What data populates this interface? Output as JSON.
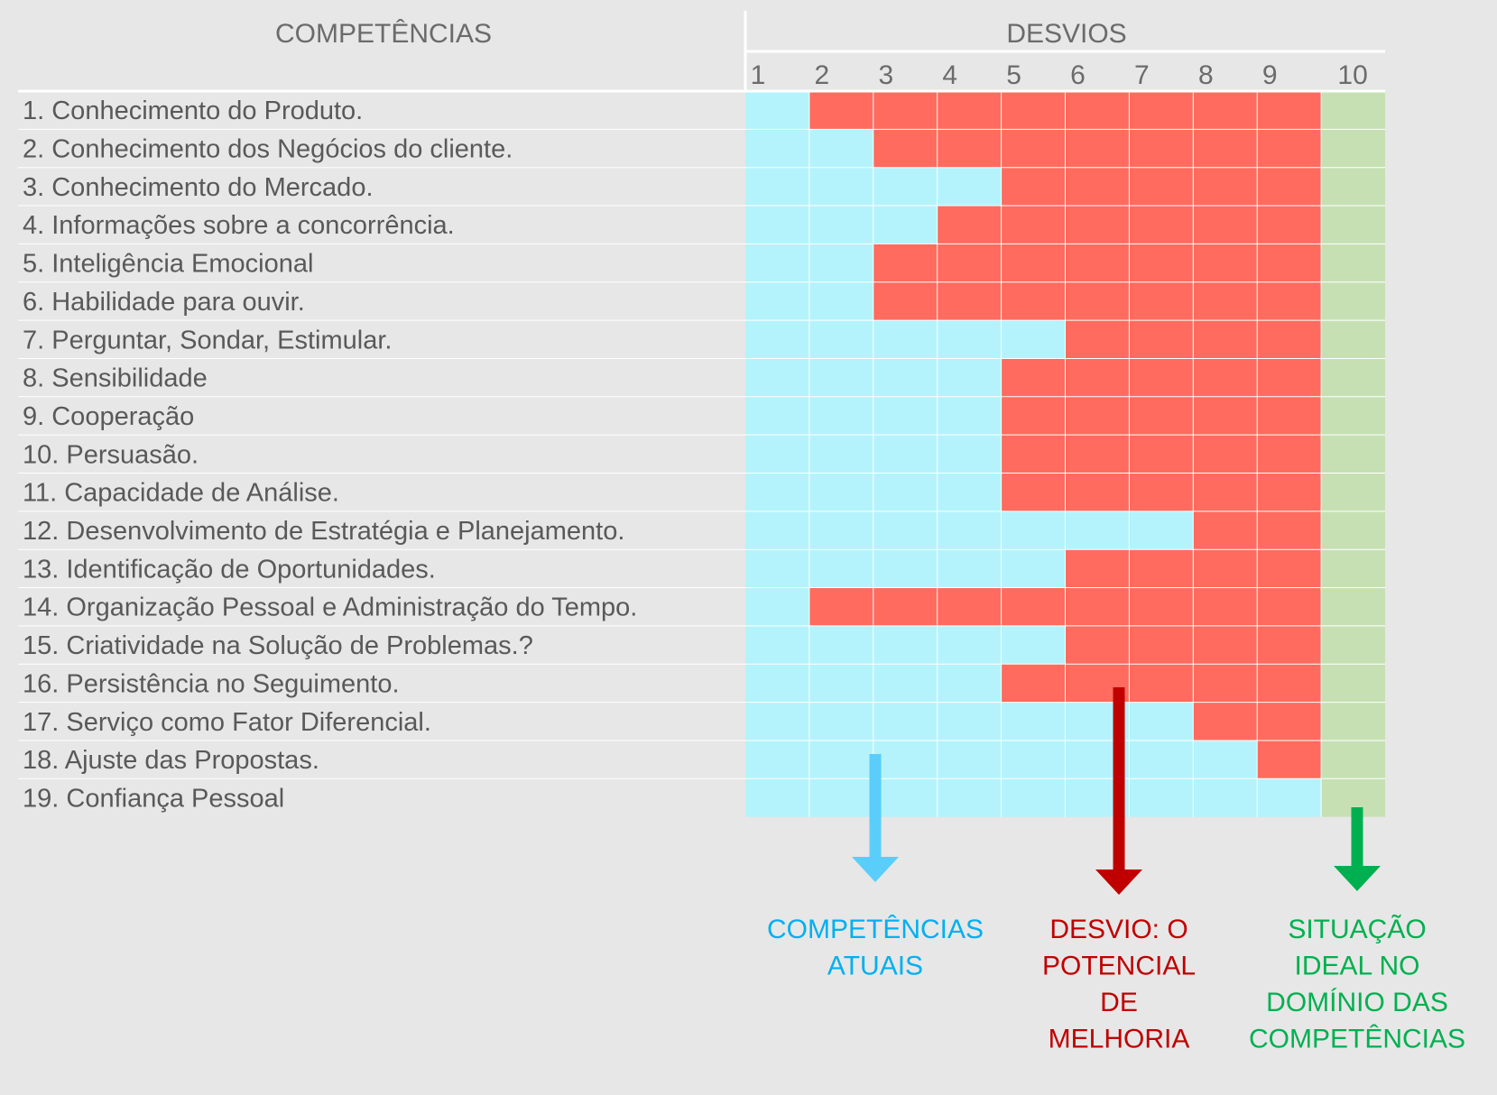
{
  "chart_data": {
    "type": "heatmap",
    "title": "",
    "row_header": "COMPETÊNCIAS",
    "column_header": "DESVIOS",
    "columns": [
      "1",
      "2",
      "3",
      "4",
      "5",
      "6",
      "7",
      "8",
      "9",
      "10"
    ],
    "rows": [
      {
        "label": "1. Conhecimento do Produto.",
        "current": 1
      },
      {
        "label": "2. Conhecimento dos Negócios do cliente.",
        "current": 2
      },
      {
        "label": "3. Conhecimento do Mercado.",
        "current": 4
      },
      {
        "label": "4. Informações sobre a concorrência.",
        "current": 3
      },
      {
        "label": "5. Inteligência Emocional",
        "current": 2
      },
      {
        "label": "6. Habilidade para ouvir.",
        "current": 2
      },
      {
        "label": "7. Perguntar, Sondar, Estimular.",
        "current": 5
      },
      {
        "label": "8. Sensibilidade",
        "current": 4
      },
      {
        "label": "9. Cooperação",
        "current": 4
      },
      {
        "label": "10. Persuasão.",
        "current": 4
      },
      {
        "label": "11. Capacidade de Análise.",
        "current": 4
      },
      {
        "label": "12. Desenvolvimento de Estratégia e Planejamento.",
        "current": 7
      },
      {
        "label": "13. Identificação de Oportunidades.",
        "current": 5
      },
      {
        "label": "14. Organização Pessoal e Administração do Tempo.",
        "current": 1
      },
      {
        "label": "15. Criatividade na Solução de Problemas.?",
        "current": 5
      },
      {
        "label": "16. Persistência no Seguimento.",
        "current": 4
      },
      {
        "label": "17. Serviço como Fator Diferencial.",
        "current": 7
      },
      {
        "label": "18. Ajuste das Propostas.",
        "current": 8
      },
      {
        "label": "19. Confiança Pessoal",
        "current": 9
      }
    ],
    "ideal_column": 10,
    "legend": [
      {
        "key": "current",
        "lines": [
          "COMPETÊNCIAS",
          "ATUAIS"
        ],
        "color": "#00b0f0",
        "arrow_color": "#5bcdfb"
      },
      {
        "key": "gap",
        "lines": [
          "DESVIO: O",
          "POTENCIAL",
          "DE",
          "MELHORIA"
        ],
        "color": "#c00000",
        "arrow_color": "#c00000"
      },
      {
        "key": "ideal",
        "lines": [
          "SITUAÇÃO",
          "IDEAL NO",
          "DOMÍNIO DAS",
          "COMPETÊNCIAS"
        ],
        "color": "#00b050",
        "arrow_color": "#00b050"
      }
    ],
    "colors": {
      "current": "#b4f3fb",
      "gap": "#ff6b5e",
      "ideal": "#c6e0b4",
      "text": "#595959"
    }
  }
}
